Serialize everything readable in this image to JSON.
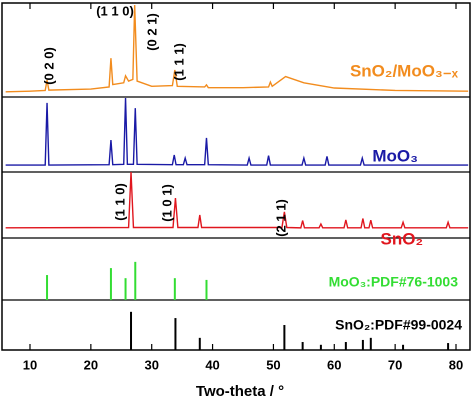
{
  "chart_data": {
    "type": "line",
    "xlabel": "Two-theta / °",
    "xlim": [
      5.4,
      82.3
    ],
    "xticks": [
      10,
      20,
      30,
      40,
      50,
      60,
      70,
      80
    ],
    "ylim": [
      0,
      100
    ],
    "series": [
      {
        "name": "SnO₂/MoO₃₋ₓ",
        "color": "#f28c1e",
        "x": [
          6,
          10,
          12.5,
          12.8,
          13.1,
          20,
          23,
          23.3,
          23.6,
          25.4,
          25.7,
          26.2,
          26.9,
          27.2,
          27.6,
          30,
          33.4,
          33.8,
          34.2,
          38.7,
          39,
          39.3,
          45,
          49.2,
          49.5,
          49.8,
          52,
          55,
          60,
          70,
          82
        ],
        "values": [
          74.4,
          74.6,
          74.8,
          77.8,
          74.9,
          75.2,
          75.8,
          84.1,
          76.5,
          77,
          79,
          77.5,
          78,
          99.4,
          77.5,
          76,
          76.2,
          80.7,
          76,
          75.8,
          76.4,
          75.6,
          75.6,
          75.8,
          77.2,
          76,
          78.8,
          77,
          75.5,
          74.8,
          74.6
        ]
      },
      {
        "name": "MoO₃",
        "color": "#1a1aa6",
        "x": [
          6,
          12.5,
          12.8,
          13.1,
          23,
          23.3,
          23.6,
          25.4,
          25.7,
          26,
          27,
          27.3,
          27.6,
          33.4,
          33.7,
          34,
          35.2,
          35.5,
          35.8,
          38.7,
          39,
          39.3,
          45.7,
          46,
          46.3,
          48.9,
          49.2,
          49.5,
          54.7,
          55,
          55.3,
          58.5,
          58.8,
          59.1,
          64.3,
          64.6,
          64.9,
          82
        ],
        "values": [
          53.3,
          53.3,
          71.2,
          53.3,
          53.4,
          60.5,
          53.4,
          53.5,
          72.6,
          53.5,
          53.5,
          69.7,
          53.5,
          53.4,
          56.2,
          53.4,
          53.4,
          55.3,
          53.4,
          53.4,
          61.1,
          53.4,
          53.3,
          55.3,
          53.3,
          53.3,
          56,
          53.3,
          53.3,
          55.3,
          53.3,
          53.3,
          55.8,
          53.3,
          53.3,
          55.3,
          53.3,
          53.3
        ]
      },
      {
        "name": "SnO₂",
        "color": "#e0161e",
        "x": [
          6,
          26.2,
          26.6,
          27,
          33.5,
          33.9,
          34.3,
          37.6,
          37.9,
          38.2,
          51.4,
          51.8,
          52.2,
          54.5,
          54.8,
          55.1,
          57.5,
          57.8,
          58.1,
          61.6,
          61.9,
          62.2,
          64.4,
          64.7,
          65,
          65.7,
          66,
          66.3,
          71,
          71.3,
          71.6,
          78.4,
          78.7,
          79,
          82
        ],
        "values": [
          35.2,
          35.3,
          51.3,
          35.3,
          35.3,
          43.8,
          35.3,
          35.3,
          38.9,
          35.3,
          35.3,
          39.8,
          35.3,
          35.2,
          37.3,
          35.2,
          35.2,
          36.3,
          35.2,
          35.2,
          37.5,
          35.2,
          35.2,
          37.9,
          35.2,
          35.2,
          37.4,
          35.2,
          35.2,
          36.8,
          35.2,
          35.2,
          36.8,
          35.2,
          35.2
        ]
      }
    ],
    "reference_patterns": [
      {
        "name": "MoO₃:PDF#76-1003",
        "color": "#33dd33",
        "baseline": 14.4,
        "x": [
          12.8,
          23.3,
          25.7,
          27.3,
          33.8,
          39.0
        ],
        "values": [
          21.6,
          23.6,
          20.7,
          25.4,
          20.7,
          20.2
        ]
      },
      {
        "name": "SnO₂:PDF#99-0024",
        "color": "#000000",
        "baseline": 0,
        "x": [
          26.6,
          33.9,
          37.9,
          51.8,
          54.8,
          57.8,
          61.9,
          64.7,
          66.0,
          71.3,
          78.7
        ],
        "values": [
          11,
          9.2,
          3.5,
          7.2,
          2.3,
          1.5,
          2.3,
          2.9,
          3.5,
          1.5,
          2.0
        ]
      }
    ],
    "annotations": [
      "(0 2 0)",
      "(1 1 0)",
      "(0 2 1)",
      "(1 1 1)",
      "(1 1 0)",
      "(1 0 1)",
      "(2 1 1)"
    ]
  }
}
